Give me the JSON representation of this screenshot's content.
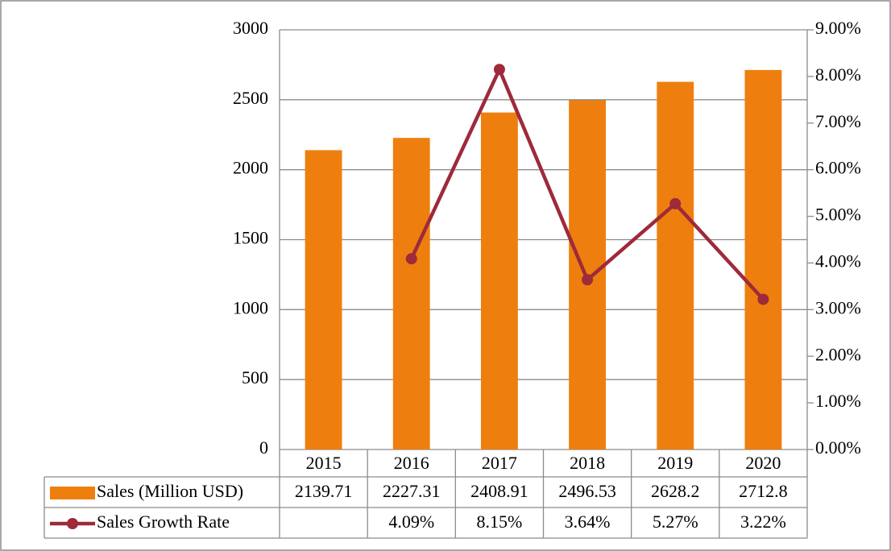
{
  "chart_data": {
    "type": "bar",
    "categories": [
      "2015",
      "2016",
      "2017",
      "2018",
      "2019",
      "2020"
    ],
    "series": [
      {
        "name": "Sales (Million USD)",
        "type": "bar",
        "color": "#ee7f0e",
        "values": [
          2139.71,
          2227.31,
          2408.91,
          2496.53,
          2628.2,
          2712.8
        ]
      },
      {
        "name": "Sales Growth Rate",
        "type": "line",
        "color": "#9e2a3a",
        "axis": "y2",
        "values": [
          null,
          4.09,
          8.15,
          3.64,
          5.27,
          3.22
        ],
        "value_labels": [
          null,
          "4.09%",
          "8.15%",
          "3.64%",
          "5.27%",
          "3.22%"
        ]
      }
    ],
    "ylim": [
      0,
      3000
    ],
    "yticks": [
      0,
      500,
      1000,
      1500,
      2000,
      2500,
      3000
    ],
    "y2lim": [
      0,
      9
    ],
    "y2ticks": [
      {
        "value": 0,
        "label": "0.00%"
      },
      {
        "value": 1,
        "label": "1.00%"
      },
      {
        "value": 2,
        "label": "2.00%"
      },
      {
        "value": 3,
        "label": "3.00%"
      },
      {
        "value": 4,
        "label": "4.00%"
      },
      {
        "value": 5,
        "label": "5.00%"
      },
      {
        "value": 6,
        "label": "6.00%"
      },
      {
        "value": 7,
        "label": "7.00%"
      },
      {
        "value": 8,
        "label": "8.00%"
      },
      {
        "value": 9,
        "label": "9.00%"
      }
    ],
    "grid": true
  }
}
